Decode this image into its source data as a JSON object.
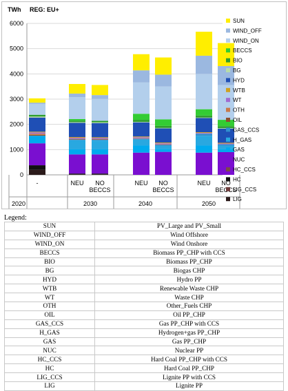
{
  "chart_data": {
    "type": "bar",
    "stacked": true,
    "unit_label": "TWh",
    "region_label": "REG: EU+",
    "ylim": [
      0,
      6000
    ],
    "yticks": [
      0,
      1000,
      2000,
      3000,
      4000,
      5000,
      6000
    ],
    "grid": true,
    "legend_position": "right",
    "categories": [
      "-",
      "NEU",
      "NO BECCS",
      "NEU",
      "NO BECCS",
      "NEU",
      "NO BECCS"
    ],
    "groups": [
      {
        "label": "2020",
        "categories": [
          0
        ]
      },
      {
        "label": "2030",
        "categories": [
          1,
          2
        ]
      },
      {
        "label": "2040",
        "categories": [
          3,
          4
        ]
      },
      {
        "label": "2050",
        "categories": [
          5,
          6
        ]
      }
    ],
    "series": [
      {
        "name": "LIG",
        "color": "#2b1a1a",
        "values": [
          200,
          20,
          20,
          0,
          0,
          0,
          0
        ]
      },
      {
        "name": "LIG_CCS",
        "color": "#6e3b3b",
        "values": [
          0,
          0,
          0,
          0,
          0,
          0,
          0
        ]
      },
      {
        "name": "HC",
        "color": "#111111",
        "values": [
          180,
          30,
          30,
          0,
          0,
          0,
          0
        ]
      },
      {
        "name": "HC_CCS",
        "color": "#7a4a4a",
        "values": [
          0,
          0,
          0,
          0,
          0,
          0,
          0
        ]
      },
      {
        "name": "NUC",
        "color": "#7a0fd0",
        "values": [
          870,
          760,
          760,
          880,
          910,
          880,
          900
        ]
      },
      {
        "name": "GAS",
        "color": "#00aaee",
        "values": [
          300,
          200,
          200,
          280,
          110,
          280,
          120
        ]
      },
      {
        "name": "H_GAS",
        "color": "#29a8e0",
        "values": [
          0,
          360,
          350,
          240,
          140,
          390,
          140
        ]
      },
      {
        "name": "GAS_CCS",
        "color": "#2f8fce",
        "values": [
          0,
          30,
          30,
          30,
          30,
          80,
          50
        ]
      },
      {
        "name": "OIL",
        "color": "#8c4f2e",
        "values": [
          40,
          20,
          20,
          10,
          10,
          0,
          0
        ]
      },
      {
        "name": "OTH",
        "color": "#c87a4a",
        "values": [
          40,
          10,
          10,
          10,
          10,
          0,
          0
        ]
      },
      {
        "name": "WT",
        "color": "#a06bd0",
        "values": [
          50,
          40,
          40,
          40,
          40,
          30,
          30
        ]
      },
      {
        "name": "WTB",
        "color": "#d0a020",
        "values": [
          30,
          30,
          30,
          30,
          30,
          30,
          30
        ]
      },
      {
        "name": "HYD",
        "color": "#1f4fb5",
        "values": [
          560,
          560,
          560,
          560,
          560,
          560,
          560
        ]
      },
      {
        "name": "BG",
        "color": "#b8dca8",
        "values": [
          40,
          30,
          30,
          20,
          20,
          20,
          20
        ]
      },
      {
        "name": "BIO",
        "color": "#2e9e2e",
        "values": [
          70,
          60,
          60,
          80,
          80,
          80,
          80
        ]
      },
      {
        "name": "BECCS",
        "color": "#33cc33",
        "values": [
          0,
          60,
          0,
          240,
          260,
          250,
          250
        ]
      },
      {
        "name": "WIND_ON",
        "color": "#b3cfec",
        "values": [
          430,
          870,
          870,
          1240,
          1300,
          1400,
          1380
        ]
      },
      {
        "name": "WIND_OFF",
        "color": "#9bb8e0",
        "values": [
          50,
          140,
          150,
          480,
          470,
          720,
          750
        ]
      },
      {
        "name": "SUN",
        "color": "#ffee00",
        "values": [
          170,
          380,
          400,
          640,
          680,
          950,
          910
        ]
      }
    ]
  },
  "legend_table": {
    "title": "Legend:",
    "rows": [
      {
        "code": "SUN",
        "desc": "PV_Large and PV_Small"
      },
      {
        "code": "WIND_OFF",
        "desc": "Wind Offshore"
      },
      {
        "code": "WIND_ON",
        "desc": "Wind Onshore"
      },
      {
        "code": "BECCS",
        "desc": "Biomass PP_CHP with CCS"
      },
      {
        "code": "BIO",
        "desc": "Biomass PP_CHP"
      },
      {
        "code": "BG",
        "desc": "Biogas CHP"
      },
      {
        "code": "HYD",
        "desc": "Hydro PP"
      },
      {
        "code": "WTB",
        "desc": "Renewable Waste CHP"
      },
      {
        "code": "WT",
        "desc": "Waste CHP"
      },
      {
        "code": "OTH",
        "desc": "Other_Fuels CHP"
      },
      {
        "code": "OIL",
        "desc": "Oil PP_CHP"
      },
      {
        "code": "GAS_CCS",
        "desc": "Gas PP_CHP with CCS"
      },
      {
        "code": "H_GAS",
        "desc": "Hydrogen+gas PP_CHP"
      },
      {
        "code": "GAS",
        "desc": "Gas PP_CHP"
      },
      {
        "code": "NUC",
        "desc": "Nuclear PP"
      },
      {
        "code": "HC_CCS",
        "desc": "Hard Coal PP_CHP with CCS"
      },
      {
        "code": "HC",
        "desc": "Hard Coal PP_CHP"
      },
      {
        "code": "LIG_CCS",
        "desc": "Lignite PP with CCS"
      },
      {
        "code": "LIG",
        "desc": "Lignite PP"
      }
    ]
  }
}
